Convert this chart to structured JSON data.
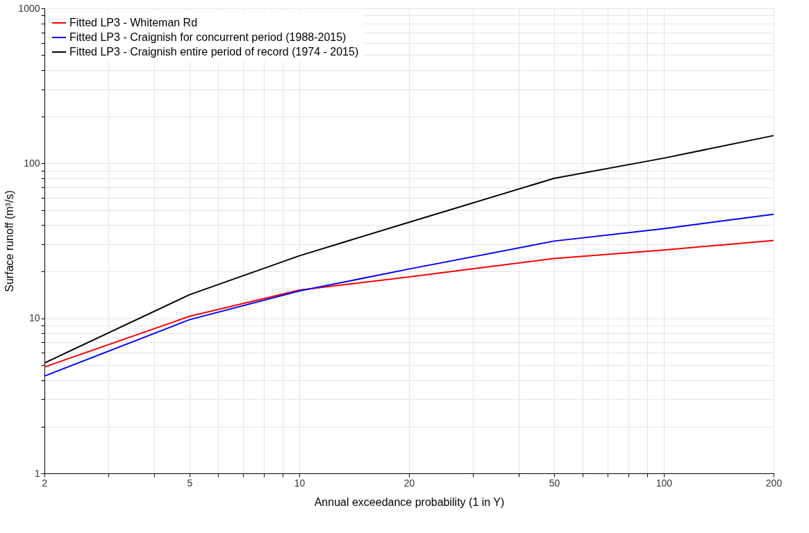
{
  "chart_data": {
    "type": "line",
    "xlabel": "Annual exceedance probability (1 in Y)",
    "ylabel": "Surface runoff (m³/s)",
    "x": [
      2,
      5,
      10,
      20,
      50,
      100,
      200
    ],
    "series": [
      {
        "name": "Fitted LP3 - Whiteman Rd",
        "color": "#ff0000",
        "values": [
          4.85,
          10.3,
          15.2,
          18.5,
          24.3,
          27.6,
          31.8
        ]
      },
      {
        "name": "Fitted LP3 - Craignish for concurrent period (1988-2015)",
        "color": "#0000ff",
        "values": [
          4.24,
          9.8,
          15.0,
          20.8,
          31.5,
          37.9,
          46.9
        ]
      },
      {
        "name": "Fitted LP3 - Craignish entire period of record (1974 - 2015)",
        "color": "#000000",
        "values": [
          5.15,
          14.2,
          25.3,
          41.7,
          80,
          108,
          151
        ]
      }
    ],
    "xlim": [
      2,
      200
    ],
    "xticks": [
      2,
      {
        "value": 3,
        "label": null
      },
      {
        "value": 4,
        "label": null
      },
      5,
      {
        "value": 6,
        "label": null
      },
      {
        "value": 7,
        "label": null
      },
      {
        "value": 8,
        "label": null
      },
      {
        "value": 9,
        "label": null
      },
      10,
      20,
      {
        "value": 30,
        "label": null
      },
      {
        "value": 40,
        "label": null
      },
      50,
      {
        "value": 60,
        "label": null
      },
      {
        "value": 70,
        "label": null
      },
      {
        "value": 80,
        "label": null
      },
      {
        "value": 90,
        "label": null
      },
      100,
      200
    ],
    "ylim": [
      1,
      1000
    ],
    "yticks": [
      1,
      {
        "value": 2,
        "label": null
      },
      {
        "value": 3,
        "label": null
      },
      {
        "value": 4,
        "label": null
      },
      {
        "value": 5,
        "label": null
      },
      {
        "value": 6,
        "label": null
      },
      {
        "value": 7,
        "label": null
      },
      {
        "value": 8,
        "label": null
      },
      {
        "value": 9,
        "label": null
      },
      10,
      {
        "value": 20,
        "label": null
      },
      {
        "value": 30,
        "label": null
      },
      {
        "value": 40,
        "label": null
      },
      {
        "value": 50,
        "label": null
      },
      {
        "value": 60,
        "label": null
      },
      {
        "value": 70,
        "label": null
      },
      {
        "value": 80,
        "label": null
      },
      {
        "value": 90,
        "label": null
      },
      100,
      {
        "value": 200,
        "label": null
      },
      {
        "value": 300,
        "label": null
      },
      {
        "value": 400,
        "label": null
      },
      {
        "value": 500,
        "label": null
      },
      {
        "value": 600,
        "label": null
      },
      {
        "value": 700,
        "label": null
      },
      {
        "value": 800,
        "label": null
      },
      {
        "value": 900,
        "label": null
      },
      1000
    ],
    "log": "xy",
    "grid": true,
    "legend": "top left",
    "line_style": "solid",
    "marker": "none"
  }
}
